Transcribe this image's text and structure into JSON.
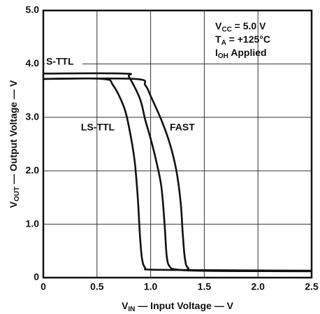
{
  "chart_data": {
    "type": "line",
    "x_label": {
      "main": "V",
      "sub": "IN",
      "rest": " — Input Voltage — V"
    },
    "y_label": {
      "main": "V",
      "sub": "OUT",
      "rest": " — Output Voltage — V"
    },
    "annotations": [
      {
        "main": "V",
        "sub": "CC",
        "rest": " = 5.0 V"
      },
      {
        "main": "T",
        "sub": "A",
        "rest": " = +125°C"
      },
      {
        "main": "I",
        "sub": "OH",
        "rest": " Applied"
      }
    ],
    "xlim": [
      0,
      2.5
    ],
    "ylim": [
      0,
      5
    ],
    "xticks": [
      0,
      0.5,
      {
        "value": 1,
        "label": "1.0"
      },
      1.5,
      {
        "value": 2,
        "label": "2.0"
      },
      2.5
    ],
    "yticks": [
      0,
      {
        "value": 1,
        "label": "1.0"
      },
      {
        "value": 2,
        "label": "2.0"
      },
      {
        "value": 3,
        "label": "3.0"
      },
      {
        "value": 4,
        "label": "4.0"
      },
      {
        "value": 5,
        "label": "5.0"
      }
    ],
    "grid": true,
    "series": [
      {
        "name": "LS-TTL",
        "color": "#111111",
        "x": [
          0,
          0.55,
          0.65,
          0.75,
          0.8,
          0.85,
          0.88,
          0.9,
          0.92,
          0.95,
          1.0,
          1.5,
          2.5
        ],
        "values": [
          3.72,
          3.72,
          3.6,
          3.2,
          2.8,
          2.2,
          1.5,
          0.8,
          0.35,
          0.18,
          0.15,
          0.14,
          0.13
        ]
      },
      {
        "name": "S-TTL",
        "color": "#111111",
        "x": [
          0,
          0.75,
          0.8,
          0.9,
          0.95,
          1.0,
          1.05,
          1.1,
          1.13,
          1.15,
          1.18,
          1.25,
          1.5,
          2.5
        ],
        "values": [
          3.82,
          3.82,
          3.75,
          3.35,
          2.95,
          2.6,
          2.2,
          1.7,
          1.0,
          0.4,
          0.2,
          0.15,
          0.13,
          0.12
        ]
      },
      {
        "name": "FAST",
        "color": "#111111",
        "x": [
          0,
          0.85,
          0.95,
          1.0,
          1.1,
          1.18,
          1.24,
          1.28,
          1.3,
          1.32,
          1.35,
          1.45,
          2.5
        ],
        "values": [
          3.72,
          3.72,
          3.6,
          3.4,
          2.95,
          2.5,
          2.0,
          1.4,
          0.8,
          0.35,
          0.18,
          0.13,
          0.12
        ]
      }
    ]
  }
}
